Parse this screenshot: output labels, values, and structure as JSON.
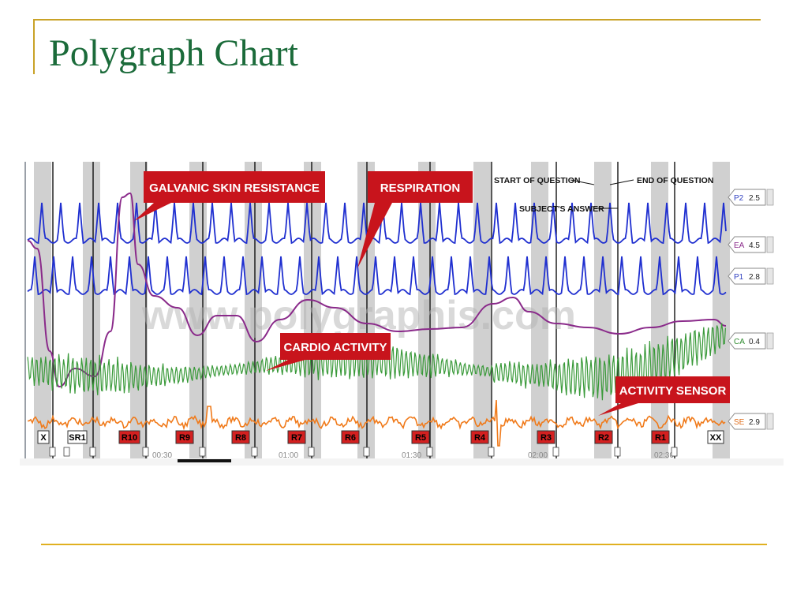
{
  "slide": {
    "title": "Polygraph Chart"
  },
  "chart_data": {
    "type": "line",
    "title": "",
    "watermark": "www.polygraphis.com",
    "time_ticks": [
      "00:30",
      "01:00",
      "01:30",
      "02:00",
      "02:30"
    ],
    "question_markers": [
      {
        "label": "X",
        "fill": "#ffffff",
        "text_color": "#000000"
      },
      {
        "label": "SR1",
        "fill": "#ffffff",
        "text_color": "#000000"
      },
      {
        "label": "R10",
        "fill": "#d42020",
        "text_color": "#000000"
      },
      {
        "label": "R9",
        "fill": "#d42020",
        "text_color": "#000000"
      },
      {
        "label": "R8",
        "fill": "#d42020",
        "text_color": "#000000"
      },
      {
        "label": "R7",
        "fill": "#d42020",
        "text_color": "#000000"
      },
      {
        "label": "R6",
        "fill": "#d42020",
        "text_color": "#000000"
      },
      {
        "label": "R5",
        "fill": "#d42020",
        "text_color": "#000000"
      },
      {
        "label": "R4",
        "fill": "#d42020",
        "text_color": "#000000"
      },
      {
        "label": "R3",
        "fill": "#d42020",
        "text_color": "#000000"
      },
      {
        "label": "R2",
        "fill": "#d42020",
        "text_color": "#000000"
      },
      {
        "label": "R1",
        "fill": "#d42020",
        "text_color": "#000000"
      },
      {
        "label": "XX",
        "fill": "#ffffff",
        "text_color": "#000000"
      }
    ],
    "channels": [
      {
        "name": "P2",
        "value": "2.5",
        "color": "#1f2fd0",
        "tag_color": "#3040c0"
      },
      {
        "name": "EA",
        "value": "4.5",
        "color": "#8a2a8a",
        "tag_color": "#8a2a8a"
      },
      {
        "name": "P1",
        "value": "2.8",
        "color": "#1f2fd0",
        "tag_color": "#3040c0"
      },
      {
        "name": "CA",
        "value": "0.4",
        "color": "#3a9a3a",
        "tag_color": "#2e8b2e"
      },
      {
        "name": "SE",
        "value": "2.9",
        "color": "#f07a1a",
        "tag_color": "#e07020"
      }
    ],
    "callouts": [
      {
        "text": "GALVANIC SKIN RESISTANCE"
      },
      {
        "text": "RESPIRATION"
      },
      {
        "text": "CARDIO ACTIVITY"
      },
      {
        "text": "ACTIVITY SENSOR"
      }
    ],
    "legend_notes": [
      {
        "text": "START OF QUESTION"
      },
      {
        "text": "END OF QUESTION"
      },
      {
        "text": "SUBJECT'S ANSWER"
      }
    ],
    "colors": {
      "callout": "#c8141c",
      "shade": "#c8c8c8"
    }
  }
}
